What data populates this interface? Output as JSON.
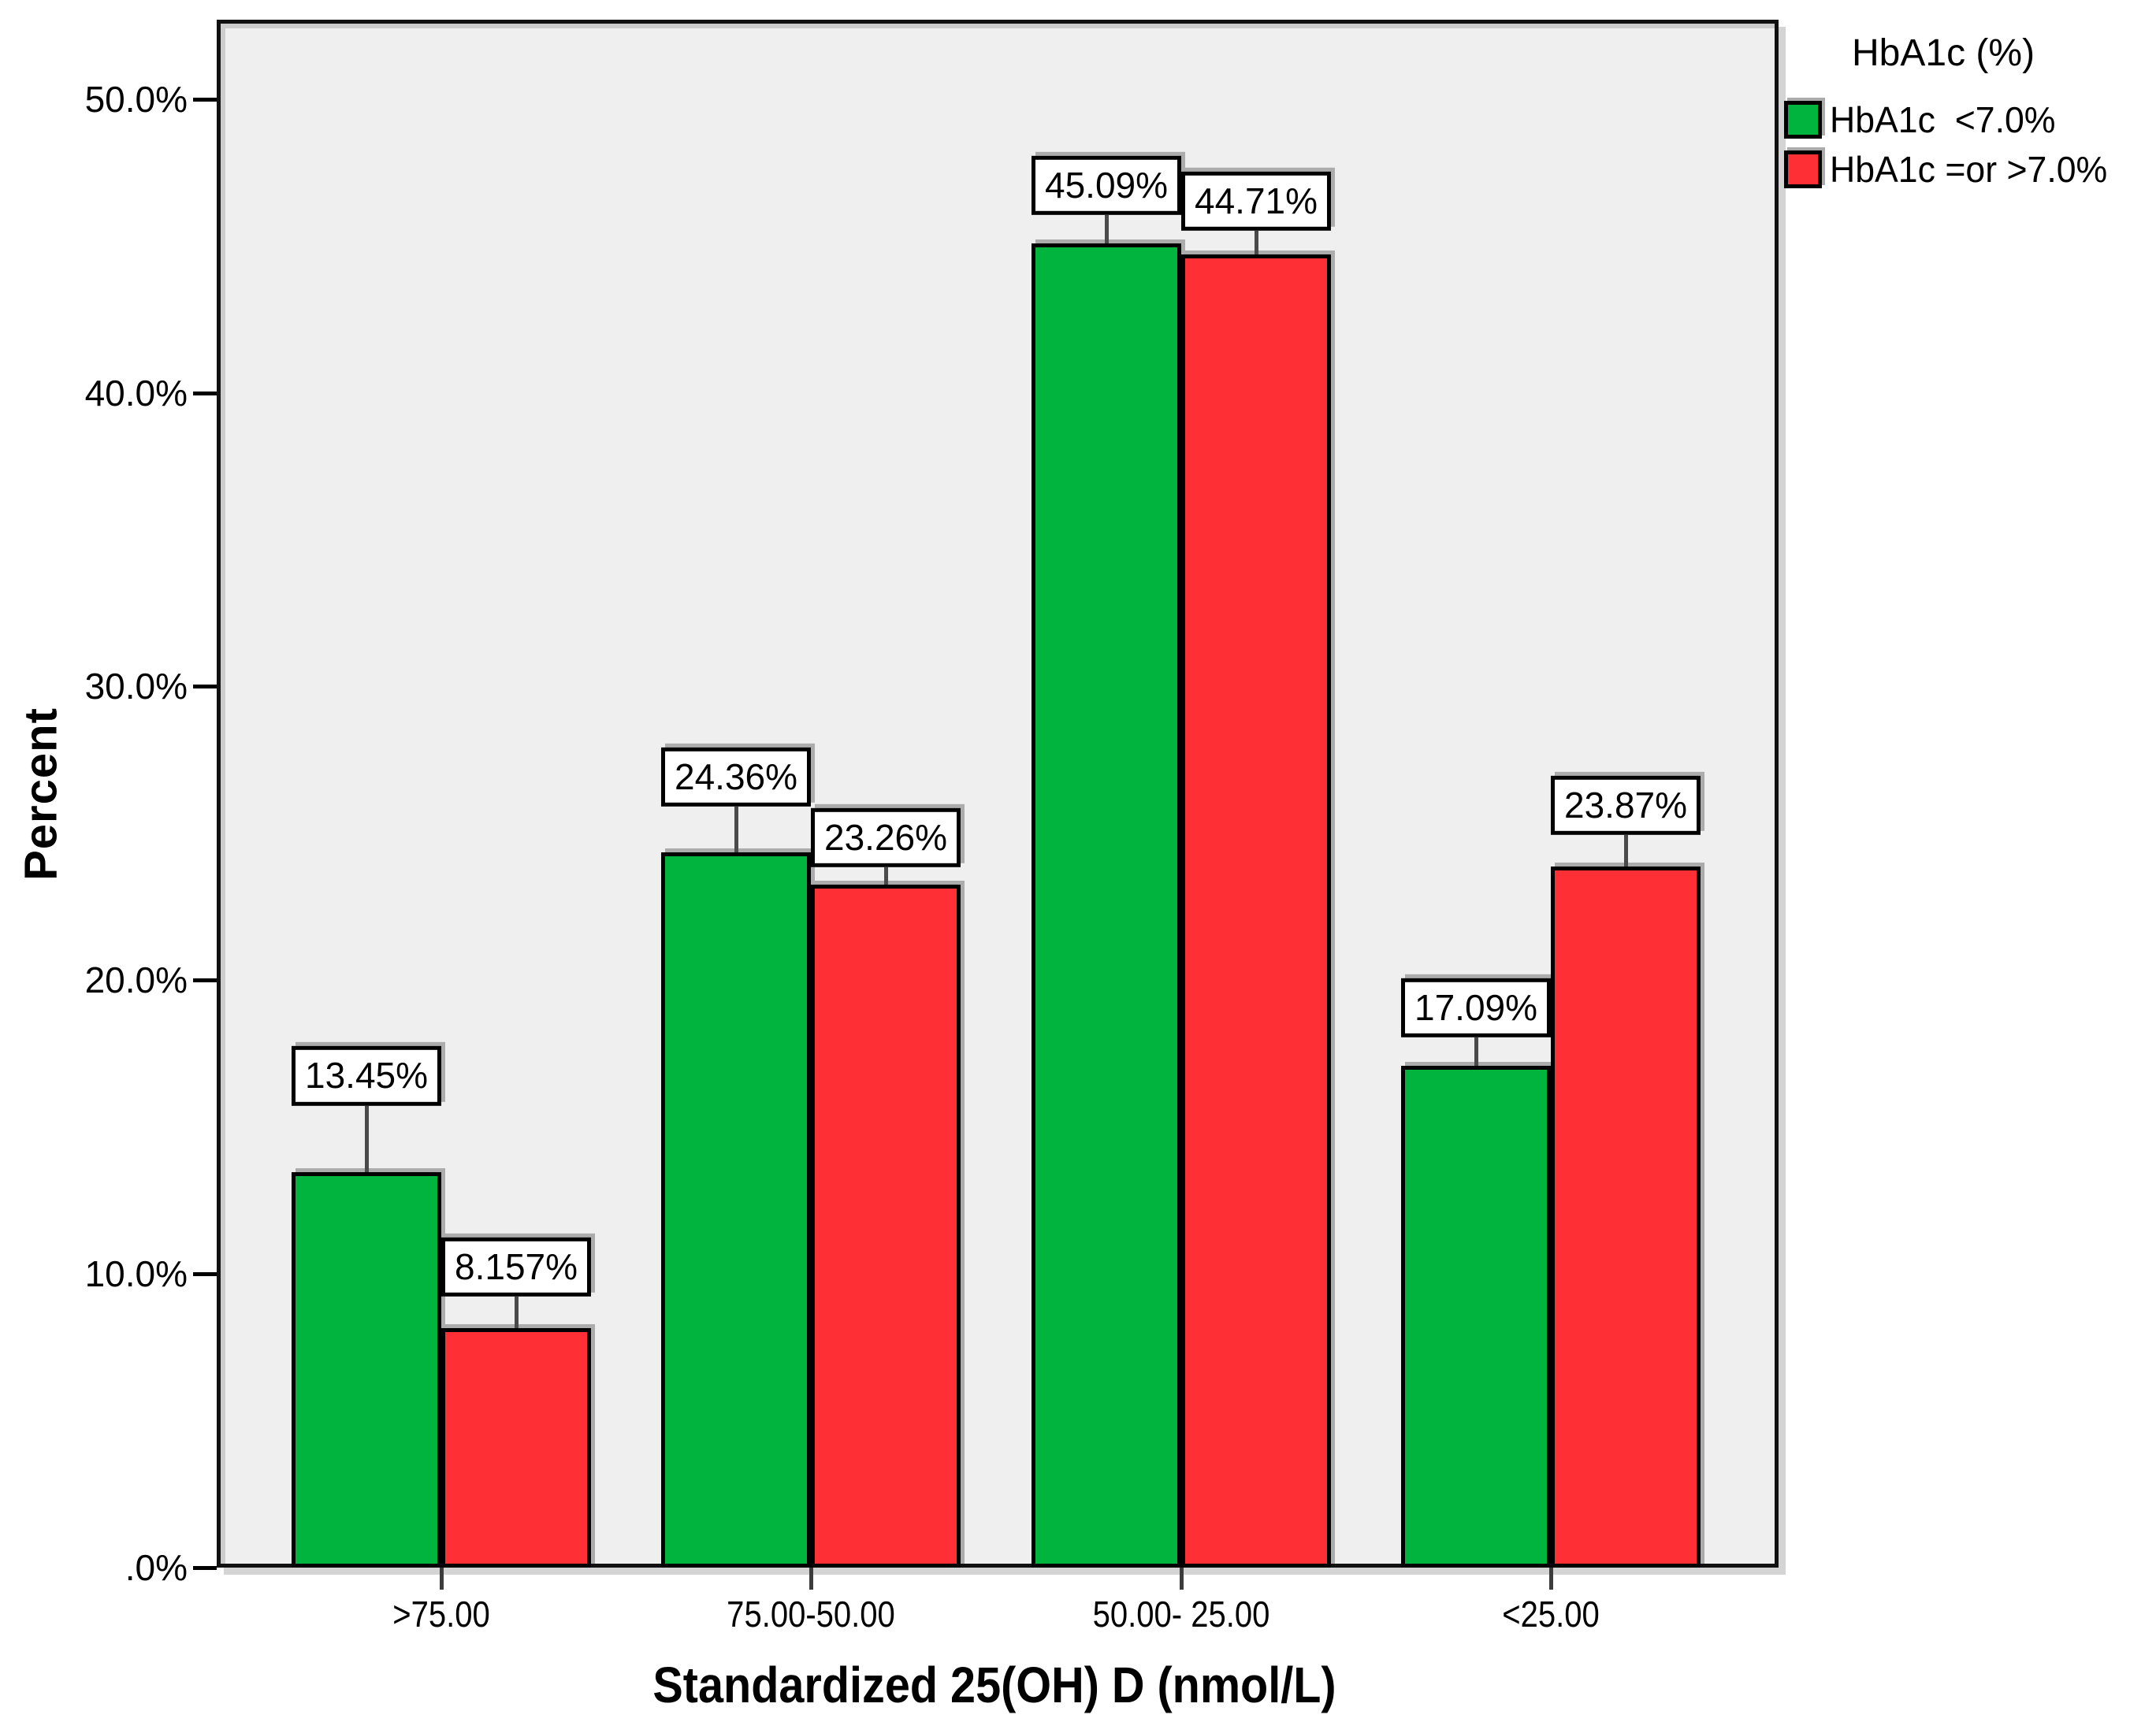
{
  "chart_data": {
    "type": "bar",
    "title": "",
    "xlabel": "Standardized 25(OH) D (nmol/L)",
    "ylabel": "Percent",
    "legend_title": "HbA1c (%)",
    "legend_position": "top-right-outside",
    "grid": false,
    "plot_background": "#efefef",
    "categories": [
      ">75.00",
      "75.00-50.00",
      "50.00- 25.00",
      "<25.00"
    ],
    "series": [
      {
        "name": "HbA1c  <7.0%",
        "color": "#00b43e",
        "values": [
          13.45,
          24.36,
          45.09,
          17.09
        ],
        "labels": [
          "13.45%",
          "24.36%",
          "45.09%",
          "17.09%"
        ]
      },
      {
        "name": "HbA1c =or >7.0%",
        "color": "#ff2f36",
        "values": [
          8.157,
          23.26,
          44.71,
          23.87
        ],
        "labels": [
          "8.157%",
          "23.26%",
          "44.71%",
          "23.87%"
        ]
      }
    ],
    "y_ticks": [
      {
        "value": 50,
        "label": "50.0%"
      },
      {
        "value": 40,
        "label": "40.0%"
      },
      {
        "value": 30,
        "label": "30.0%"
      },
      {
        "value": 20,
        "label": "20.0%"
      },
      {
        "value": 10,
        "label": "10.0%"
      },
      {
        "value": 0,
        "label": ".0%"
      }
    ],
    "ylim": [
      0,
      52.7
    ]
  }
}
